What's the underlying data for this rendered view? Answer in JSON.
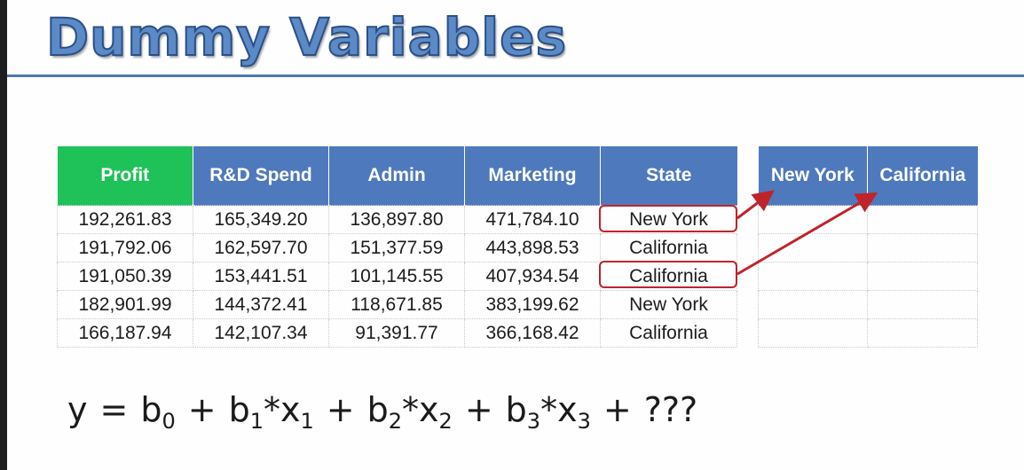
{
  "title": "Dummy Variables",
  "main_table": {
    "headers": [
      "Profit",
      "R&D Spend",
      "Admin",
      "Marketing",
      "State"
    ],
    "rows": [
      [
        "192,261.83",
        "165,349.20",
        "136,897.80",
        "471,784.10",
        "New York"
      ],
      [
        "191,792.06",
        "162,597.70",
        "151,377.59",
        "443,898.53",
        "California"
      ],
      [
        "191,050.39",
        "153,441.51",
        "101,145.55",
        "407,934.54",
        "California"
      ],
      [
        "182,901.99",
        "144,372.41",
        "118,671.85",
        "383,199.62",
        "New York"
      ],
      [
        "166,187.94",
        "142,107.34",
        "91,391.77",
        "366,168.42",
        "California"
      ]
    ]
  },
  "dummy_table": {
    "headers": [
      "New York",
      "California"
    ],
    "rows": [
      [
        "",
        ""
      ],
      [
        "",
        ""
      ],
      [
        "",
        ""
      ],
      [
        "",
        ""
      ],
      [
        "",
        ""
      ]
    ]
  },
  "formula": {
    "y": "y",
    "eq": "=",
    "plus": "+",
    "b0": "b",
    "b0_sub": "0",
    "b1": "b",
    "b1_sub": "1",
    "x1": "*x",
    "x1_sub": "1",
    "b2": "b",
    "b2_sub": "2",
    "x2": "*x",
    "x2_sub": "2",
    "b3": "b",
    "b3_sub": "3",
    "x3": "*x",
    "x3_sub": "3",
    "unknown": "???"
  },
  "colors": {
    "header_blue": "#4f79bd",
    "profit_green": "#1fc159",
    "highlight_red": "#c0232a",
    "title_blue": "#5b8ac7"
  }
}
